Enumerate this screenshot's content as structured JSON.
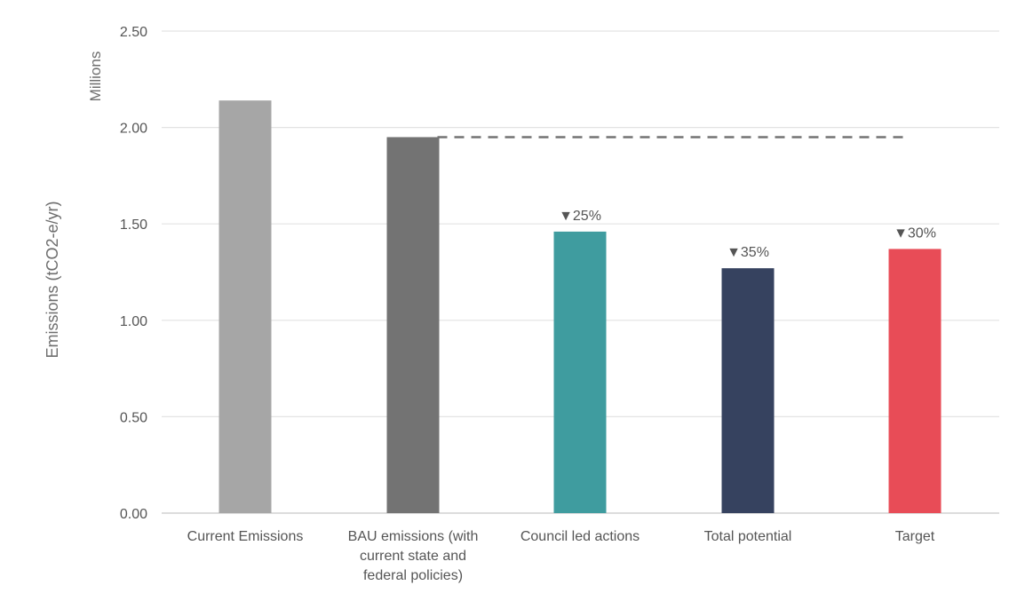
{
  "chart_data": {
    "type": "bar",
    "title": "",
    "ylabel": "Emissions (tCO2-e/yr)",
    "yunits": "Millions",
    "ylim": [
      0,
      2.5
    ],
    "yticks": [
      "0.00",
      "0.50",
      "1.00",
      "1.50",
      "2.00",
      "2.50"
    ],
    "grid": true,
    "categories": [
      [
        "Current Emissions"
      ],
      [
        "BAU emissions (with",
        "current state and",
        "federal policies)"
      ],
      [
        "Council led actions"
      ],
      [
        "Total potential"
      ],
      [
        "Target"
      ]
    ],
    "values": [
      2.14,
      1.95,
      1.46,
      1.27,
      1.37
    ],
    "colors": [
      "#a6a6a6",
      "#737373",
      "#3f9c9f",
      "#36425f",
      "#e84c57"
    ],
    "annotations": [
      "",
      "",
      "▼25%",
      "▼35%",
      "▼30%"
    ],
    "reference_line": {
      "value": 1.95,
      "style": "dashed",
      "color": "#737373"
    }
  }
}
